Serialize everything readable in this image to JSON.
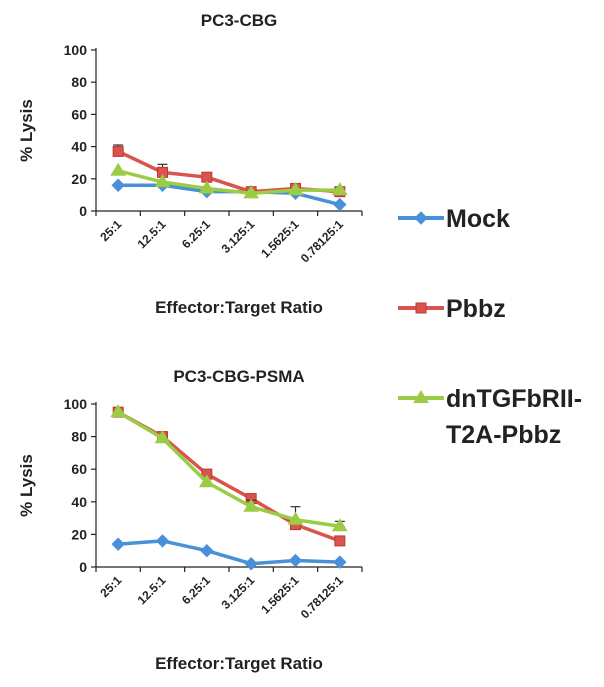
{
  "chart_data": [
    {
      "type": "line",
      "title": "PC3-CBG",
      "xlabel": "Effector:Target Ratio",
      "ylabel": "% Lysis",
      "categories": [
        "25:1",
        "12.5:1",
        "6.25:1",
        "3.125:1",
        "1.5625:1",
        "0.78125:1"
      ],
      "ylim": [
        0,
        100
      ],
      "yticks": [
        0,
        20,
        40,
        60,
        80,
        100
      ],
      "series": [
        {
          "name": "Mock",
          "values": [
            16,
            16,
            12,
            12,
            11,
            4
          ],
          "errors": [
            0,
            0,
            0,
            0,
            0,
            0
          ]
        },
        {
          "name": "Pbbz",
          "values": [
            37,
            24,
            21,
            12,
            14,
            12
          ],
          "errors": [
            4,
            5,
            0,
            0,
            0,
            0
          ]
        },
        {
          "name": "dnTGFbRII-T2A-Pbbz",
          "values": [
            25,
            18,
            14,
            11,
            13,
            13
          ],
          "errors": [
            0,
            0,
            0,
            0,
            0,
            0
          ]
        }
      ]
    },
    {
      "type": "line",
      "title": "PC3-CBG-PSMA",
      "xlabel": "Effector:Target Ratio",
      "ylabel": "% Lysis",
      "categories": [
        "25:1",
        "12.5:1",
        "6.25:1",
        "3.125:1",
        "1.5625:1",
        "0.78125:1"
      ],
      "ylim": [
        0,
        100
      ],
      "yticks": [
        0,
        20,
        40,
        60,
        80,
        100
      ],
      "series": [
        {
          "name": "Mock",
          "values": [
            14,
            16,
            10,
            2,
            4,
            3
          ],
          "errors": [
            0,
            0,
            0,
            0,
            0,
            0
          ]
        },
        {
          "name": "Pbbz",
          "values": [
            95,
            80,
            57,
            42,
            26,
            16
          ],
          "errors": [
            0,
            0,
            0,
            0,
            0,
            0
          ]
        },
        {
          "name": "dnTGFbRII-T2A-Pbbz",
          "values": [
            95,
            79,
            52,
            37,
            29,
            25
          ],
          "errors": [
            0,
            0,
            0,
            4,
            8,
            3
          ]
        }
      ]
    }
  ],
  "legend": [
    {
      "label": "Mock",
      "color": "#4a90d9",
      "marker": "diamond"
    },
    {
      "label": "Pbbz",
      "color": "#d9534f",
      "marker": "square"
    },
    {
      "label_lines": [
        "dnTGFbRII-",
        "T2A-Pbbz"
      ],
      "color": "#9acd45",
      "marker": "triangle"
    }
  ],
  "colors": {
    "axis": "#222222",
    "mock": "#4a90d9",
    "pbbz": "#d9534f",
    "dn": "#9acd45",
    "errorbar": "#333333"
  }
}
